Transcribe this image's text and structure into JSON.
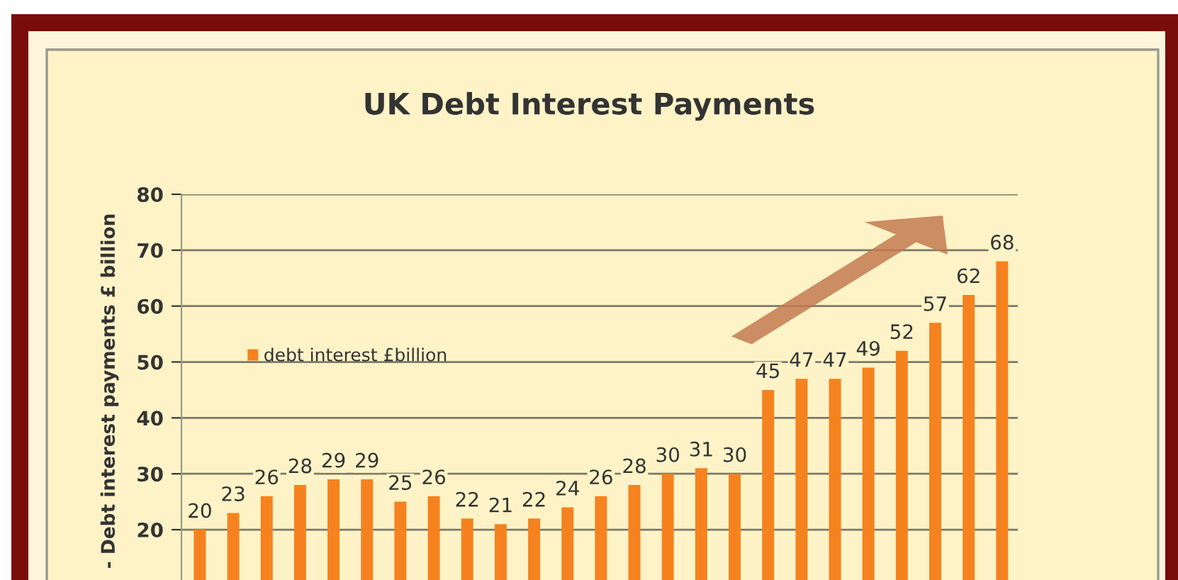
{
  "chart_data": {
    "type": "bar",
    "title": "UK Debt Interest Payments",
    "ylabel": "- Debt interest payments £ billion",
    "categories": [
      null,
      null,
      null,
      null,
      null,
      null,
      null,
      null,
      null,
      null,
      null,
      null,
      null,
      null,
      null,
      null,
      null,
      null,
      null,
      null,
      null,
      null,
      null,
      null,
      null
    ],
    "series": [
      {
        "name": "debt interest £billion",
        "color": "#f5821f",
        "values": [
          20,
          23,
          26,
          28,
          29,
          29,
          25,
          26,
          22,
          21,
          22,
          24,
          26,
          28,
          30,
          31,
          30,
          45,
          47,
          47,
          49,
          52,
          57,
          62,
          68
        ]
      }
    ],
    "ylim": [
      11,
      80
    ],
    "yticks": [
      20,
      30,
      40,
      50,
      60,
      70,
      80
    ],
    "grid": "y",
    "legend": "left",
    "data_labels": true
  }
}
